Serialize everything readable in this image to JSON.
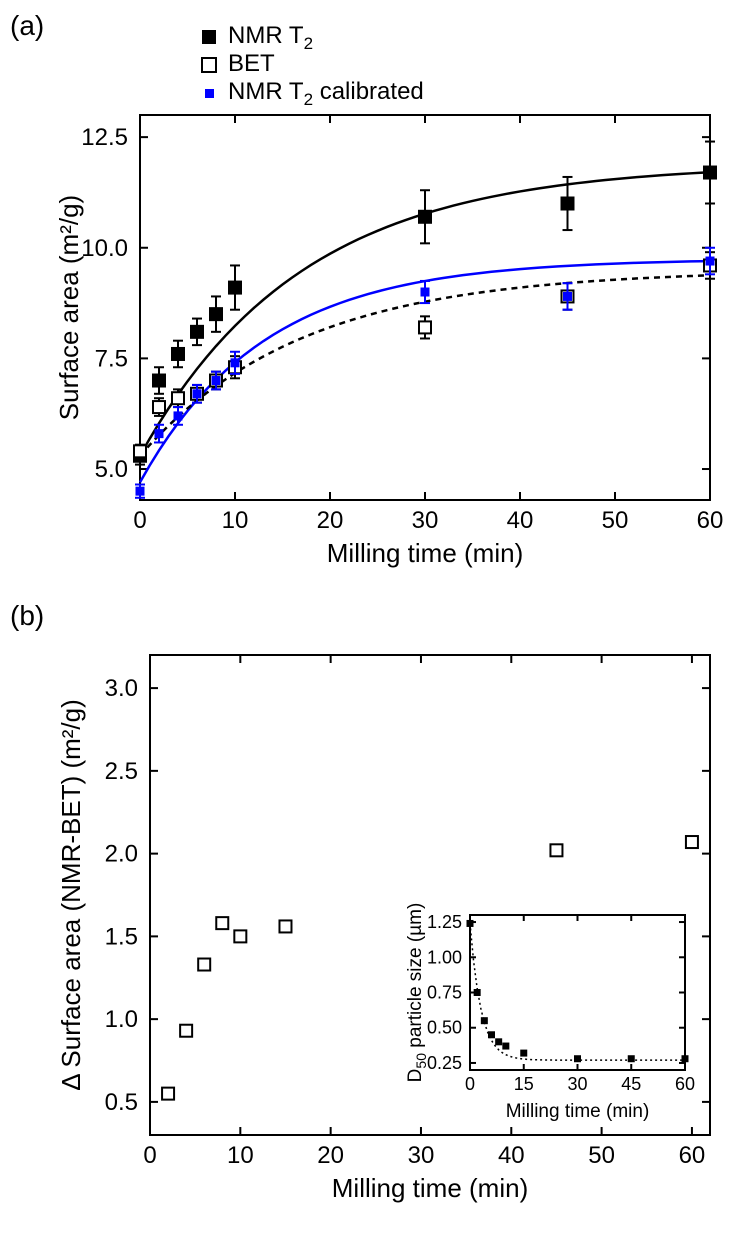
{
  "panelA": {
    "label": "(a)",
    "type": "scatter-line",
    "xlabel": "Milling time (min)",
    "ylabel": "Surface area (m²/g)",
    "label_fontsize": 26,
    "tick_fontsize": 24,
    "xlim": [
      0,
      60
    ],
    "ylim": [
      4.3,
      13
    ],
    "xticks": [
      0,
      10,
      20,
      30,
      40,
      50,
      60
    ],
    "yticks": [
      5.0,
      7.5,
      10.0,
      12.5
    ],
    "background_color": "#ffffff",
    "legend": {
      "position": "top",
      "items": [
        {
          "label": "NMR T",
          "sub": "2",
          "marker": "filled-square",
          "color": "#000000"
        },
        {
          "label": "BET",
          "marker": "open-square",
          "color": "#000000"
        },
        {
          "label": "NMR T",
          "sub": "2",
          "suffix": " calibrated",
          "marker": "small-filled-square",
          "color": "#0000ff"
        }
      ]
    },
    "series": {
      "nmr_t2": {
        "marker": "filled-square",
        "marker_size": 12,
        "color": "#000000",
        "x": [
          0,
          2,
          4,
          6,
          8,
          10,
          30,
          45,
          60
        ],
        "y": [
          5.3,
          7.0,
          7.6,
          8.1,
          8.5,
          9.1,
          10.7,
          11.0,
          11.7
        ],
        "yerr": [
          0.2,
          0.3,
          0.3,
          0.3,
          0.4,
          0.5,
          0.6,
          0.6,
          0.7
        ],
        "fit_line": {
          "color": "#000000",
          "width": 2.5,
          "dash": "none"
        }
      },
      "bet": {
        "marker": "open-square",
        "marker_size": 12,
        "color": "#000000",
        "x": [
          0,
          2,
          4,
          6,
          8,
          10,
          30,
          45,
          60
        ],
        "y": [
          5.4,
          6.4,
          6.6,
          6.7,
          7.0,
          7.3,
          8.2,
          8.9,
          9.6
        ],
        "yerr": [
          0.15,
          0.2,
          0.2,
          0.2,
          0.2,
          0.25,
          0.25,
          0.3,
          0.3
        ],
        "fit_line": {
          "color": "#000000",
          "width": 2.5,
          "dash": "6,5"
        }
      },
      "nmr_t2_cal": {
        "marker": "small-filled-square",
        "marker_size": 7,
        "color": "#0000ff",
        "x": [
          0,
          2,
          4,
          6,
          8,
          10,
          30,
          45,
          60
        ],
        "y": [
          4.5,
          5.8,
          6.2,
          6.7,
          7.0,
          7.4,
          9.0,
          8.9,
          9.7
        ],
        "yerr": [
          0.15,
          0.2,
          0.2,
          0.2,
          0.2,
          0.25,
          0.25,
          0.3,
          0.3
        ],
        "fit_line": {
          "color": "#0000ff",
          "width": 2.5,
          "dash": "none"
        }
      }
    }
  },
  "panelB": {
    "label": "(b)",
    "type": "scatter",
    "xlabel": "Milling time (min)",
    "ylabel": "Δ Surface area (NMR-BET) (m²/g)",
    "label_fontsize": 26,
    "tick_fontsize": 24,
    "xlim": [
      0,
      62
    ],
    "ylim": [
      0.3,
      3.2
    ],
    "xticks": [
      0,
      10,
      20,
      30,
      40,
      50,
      60
    ],
    "yticks": [
      0.5,
      1.0,
      1.5,
      2.0,
      2.5,
      3.0
    ],
    "background_color": "#ffffff",
    "series": {
      "delta": {
        "marker": "open-square",
        "marker_size": 12,
        "color": "#000000",
        "x": [
          2,
          4,
          6,
          8,
          10,
          15,
          45,
          60
        ],
        "y": [
          0.55,
          0.93,
          1.33,
          1.58,
          1.5,
          1.56,
          2.02,
          2.07
        ]
      }
    },
    "inset": {
      "type": "scatter-line",
      "xlabel": "Milling time (min)",
      "ylabel": "D₅₀ particle size (µm)",
      "label_fontsize": 19,
      "tick_fontsize": 18,
      "xlim": [
        0,
        60
      ],
      "ylim": [
        0.2,
        1.3
      ],
      "xticks": [
        0,
        15,
        30,
        45,
        60
      ],
      "yticks": [
        0.25,
        0.5,
        0.75,
        1.0,
        1.25
      ],
      "series": {
        "d50": {
          "marker": "filled-square",
          "marker_size": 7,
          "color": "#000000",
          "x": [
            0,
            2,
            4,
            6,
            8,
            10,
            15,
            30,
            45,
            60
          ],
          "y": [
            1.24,
            0.75,
            0.55,
            0.45,
            0.4,
            0.37,
            0.32,
            0.28,
            0.28,
            0.28
          ],
          "fit_line": {
            "color": "#000000",
            "width": 1.5,
            "dash": "2,3"
          }
        }
      }
    }
  }
}
